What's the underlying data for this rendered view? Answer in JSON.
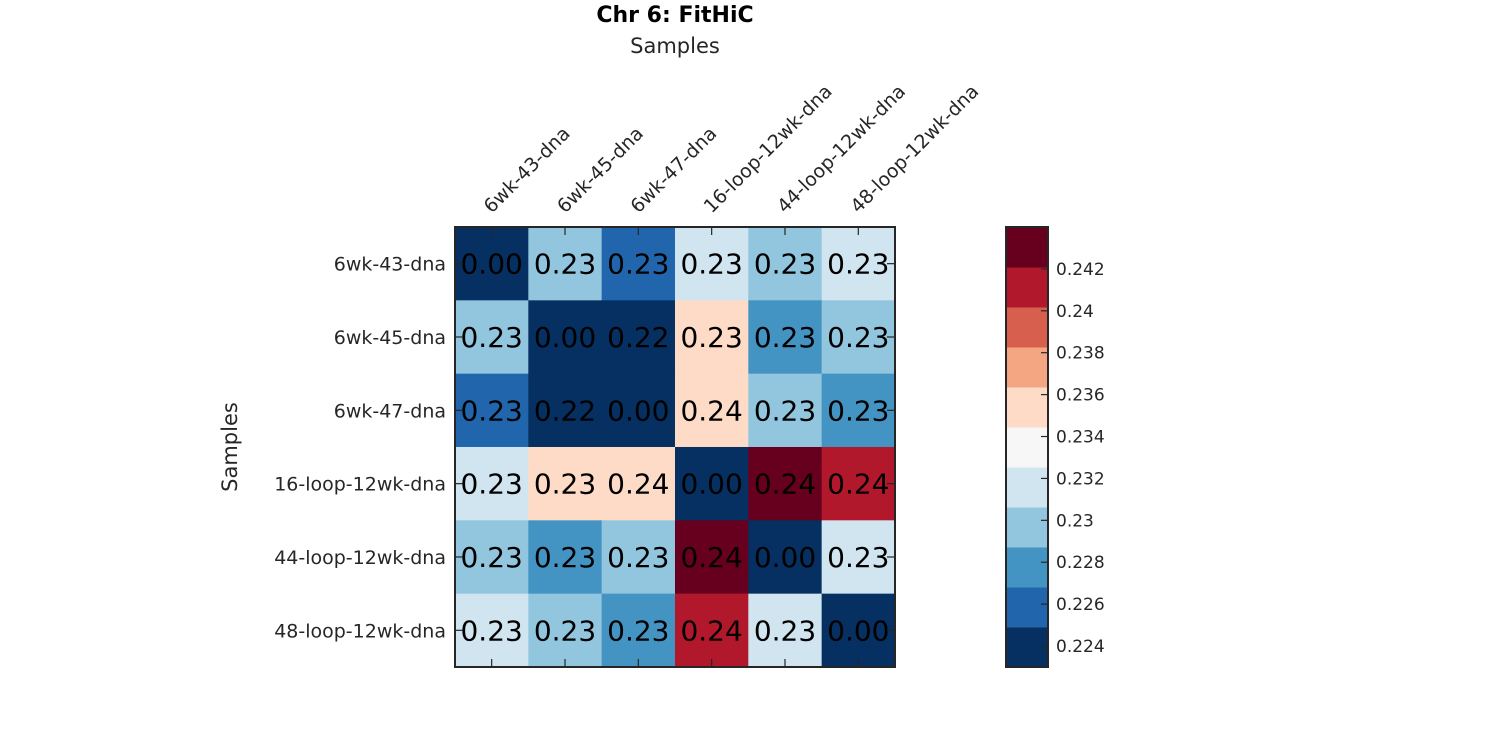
{
  "chart_data": {
    "type": "heatmap",
    "title": "Chr 6: FitHiC",
    "xlabel": "Samples",
    "ylabel": "Samples",
    "x_categories": [
      "6wk-43-dna",
      "6wk-45-dna",
      "6wk-47-dna",
      "16-loop-12wk-dna",
      "44-loop-12wk-dna",
      "48-loop-12wk-dna"
    ],
    "y_categories": [
      "6wk-43-dna",
      "6wk-45-dna",
      "6wk-47-dna",
      "16-loop-12wk-dna",
      "44-loop-12wk-dna",
      "48-loop-12wk-dna"
    ],
    "values": [
      [
        0.0,
        0.2305,
        0.2255,
        0.2325,
        0.2295,
        0.2325
      ],
      [
        0.2305,
        0.0,
        0.2235,
        0.2345,
        0.2275,
        0.2305
      ],
      [
        0.2255,
        0.2235,
        0.0,
        0.2355,
        0.2295,
        0.2275
      ],
      [
        0.2325,
        0.2345,
        0.2355,
        0.0,
        0.2425,
        0.2405
      ],
      [
        0.2295,
        0.2275,
        0.2295,
        0.2425,
        0.0,
        0.2325
      ],
      [
        0.2325,
        0.2305,
        0.2275,
        0.2405,
        0.2325,
        0.0
      ]
    ],
    "cell_labels": [
      [
        "0.00",
        "0.23",
        "0.23",
        "0.23",
        "0.23",
        "0.23"
      ],
      [
        "0.23",
        "0.00",
        "0.22",
        "0.23",
        "0.23",
        "0.23"
      ],
      [
        "0.23",
        "0.22",
        "0.00",
        "0.24",
        "0.23",
        "0.23"
      ],
      [
        "0.23",
        "0.23",
        "0.24",
        "0.00",
        "0.24",
        "0.24"
      ],
      [
        "0.23",
        "0.23",
        "0.23",
        "0.24",
        "0.00",
        "0.23"
      ],
      [
        "0.23",
        "0.23",
        "0.23",
        "0.24",
        "0.23",
        "0.00"
      ]
    ],
    "colorbar": {
      "range": [
        0.223,
        0.244
      ],
      "bins": 10,
      "colors": [
        "#053061",
        "#2166ac",
        "#4393c3",
        "#92c5de",
        "#d1e5f0",
        "#f7f7f7",
        "#fddbc7",
        "#f4a582",
        "#d6604d",
        "#b2182b",
        "#67001f"
      ],
      "ticks": [
        0.224,
        0.226,
        0.228,
        0.23,
        0.232,
        0.234,
        0.236,
        0.238,
        0.24,
        0.242
      ],
      "tick_labels": [
        "0.224",
        "0.226",
        "0.228",
        "0.23",
        "0.232",
        "0.234",
        "0.236",
        "0.238",
        "0.24",
        "0.242"
      ]
    }
  }
}
